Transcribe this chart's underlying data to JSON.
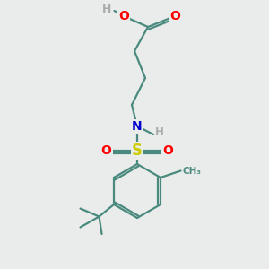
{
  "bg_color": "#eaecec",
  "bond_color": "#4a8a7e",
  "atom_colors": {
    "O": "#ff0000",
    "N": "#0000cc",
    "S": "#cccc00",
    "H": "#aaaaaa",
    "C": "#4a8a7e"
  },
  "bond_width": 1.6,
  "font_size_atoms": 10,
  "figsize": [
    3.0,
    3.0
  ],
  "dpi": 100
}
